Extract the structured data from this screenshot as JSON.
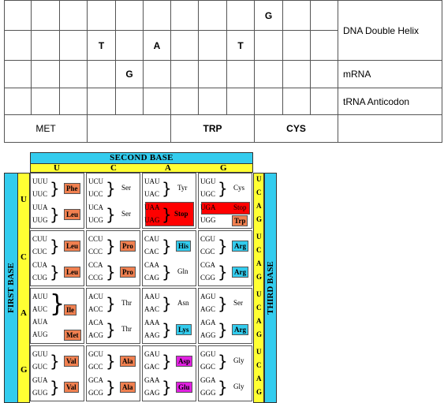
{
  "worksheet": {
    "rows": [
      {
        "name": "dna-top-strand",
        "cells": [
          "",
          "",
          "",
          "",
          "",
          "",
          "",
          "",
          "",
          "G",
          "",
          ""
        ],
        "label": "DNA Double Helix"
      },
      {
        "name": "dna-bottom-strand",
        "cells": [
          "",
          "",
          "",
          "T",
          "",
          "A",
          "",
          "",
          "T",
          "",
          "",
          ""
        ],
        "label": ""
      },
      {
        "name": "mrna",
        "cells": [
          "",
          "",
          "",
          "",
          "G",
          "",
          "",
          "",
          "",
          "",
          "",
          ""
        ],
        "label": "mRNA"
      },
      {
        "name": "trna",
        "cells": [
          "",
          "",
          "",
          "",
          "",
          "",
          "",
          "",
          "",
          "",
          "",
          ""
        ],
        "label": "tRNA  Anticodon"
      }
    ],
    "amino_acids": [
      "MET",
      "",
      "TRP",
      "CYS"
    ]
  },
  "chart": {
    "second_base_title": "SECOND BASE",
    "first_base_title": "FIRST BASE",
    "third_base_title": "THIRD BASE",
    "bases": [
      "U",
      "C",
      "A",
      "G"
    ],
    "third_letters": [
      "U",
      "C",
      "A",
      "G"
    ],
    "blocks": [
      [
        [
          {
            "codons": [
              "UUU",
              "UUC"
            ],
            "aa": "Phe",
            "color": "orange"
          },
          {
            "codons": [
              "UUA",
              "UUG"
            ],
            "aa": "Leu",
            "color": "orange"
          }
        ],
        [
          {
            "codons": [
              "UCU",
              "UCC"
            ],
            "aa": "Ser",
            "color": ""
          },
          {
            "codons": [
              "UCA",
              "UCG"
            ],
            "aa": "Ser",
            "color": ""
          }
        ],
        [
          {
            "codons": [
              "UAU",
              "UAC"
            ],
            "aa": "Tyr",
            "color": ""
          },
          {
            "codons": [
              "UAA",
              "UAG"
            ],
            "aa": "Stop",
            "color": "red"
          }
        ],
        [
          {
            "codons": [
              "UGU",
              "UGC"
            ],
            "aa": "Cys",
            "color": ""
          },
          {
            "codons": [
              "UGA",
              "UGG"
            ],
            "aa": "Stop",
            "aa2": "Trp",
            "color": "red",
            "split": true
          }
        ]
      ],
      [
        [
          {
            "codons": [
              "CUU",
              "CUC"
            ],
            "aa": "Leu",
            "color": "orange"
          },
          {
            "codons": [
              "CUA",
              "CUG"
            ],
            "aa": "Leu",
            "color": "orange"
          }
        ],
        [
          {
            "codons": [
              "CCU",
              "CCC"
            ],
            "aa": "Pro",
            "color": "orange"
          },
          {
            "codons": [
              "CCA",
              "CCG"
            ],
            "aa": "Pro",
            "color": "orange"
          }
        ],
        [
          {
            "codons": [
              "CAU",
              "CAC"
            ],
            "aa": "His",
            "color": "cyan"
          },
          {
            "codons": [
              "CAA",
              "CAG"
            ],
            "aa": "Gln",
            "color": ""
          }
        ],
        [
          {
            "codons": [
              "CGU",
              "CGC"
            ],
            "aa": "Arg",
            "color": "cyan"
          },
          {
            "codons": [
              "CGA",
              "CGG"
            ],
            "aa": "Arg",
            "color": "cyan"
          }
        ]
      ],
      [
        [
          {
            "codons": [
              "AUU",
              "AUC",
              "AUA"
            ],
            "aa": "Ile",
            "color": "orange"
          },
          {
            "codons": [
              "AUG"
            ],
            "aa": "Met",
            "color": "orange"
          }
        ],
        [
          {
            "codons": [
              "ACU",
              "ACC"
            ],
            "aa": "Thr",
            "color": ""
          },
          {
            "codons": [
              "ACA",
              "ACG"
            ],
            "aa": "Thr",
            "color": ""
          }
        ],
        [
          {
            "codons": [
              "AAU",
              "AAC"
            ],
            "aa": "Asn",
            "color": ""
          },
          {
            "codons": [
              "AAA",
              "AAG"
            ],
            "aa": "Lys",
            "color": "cyan"
          }
        ],
        [
          {
            "codons": [
              "AGU",
              "AGC"
            ],
            "aa": "Ser",
            "color": ""
          },
          {
            "codons": [
              "AGA",
              "AGG"
            ],
            "aa": "Arg",
            "color": "cyan"
          }
        ]
      ],
      [
        [
          {
            "codons": [
              "GUU",
              "GUC"
            ],
            "aa": "Val",
            "color": "orange"
          },
          {
            "codons": [
              "GUA",
              "GUG"
            ],
            "aa": "Val",
            "color": "orange"
          }
        ],
        [
          {
            "codons": [
              "GCU",
              "GCC"
            ],
            "aa": "Ala",
            "color": "orange"
          },
          {
            "codons": [
              "GCA",
              "GCG"
            ],
            "aa": "Ala",
            "color": "orange"
          }
        ],
        [
          {
            "codons": [
              "GAU",
              "GAC"
            ],
            "aa": "Asp",
            "color": "magenta"
          },
          {
            "codons": [
              "GAA",
              "GAG"
            ],
            "aa": "Glu",
            "color": "magenta"
          }
        ],
        [
          {
            "codons": [
              "GGU",
              "GGC"
            ],
            "aa": "Gly",
            "color": ""
          },
          {
            "codons": [
              "GGA",
              "GGG"
            ],
            "aa": "Gly",
            "color": ""
          }
        ]
      ]
    ]
  }
}
